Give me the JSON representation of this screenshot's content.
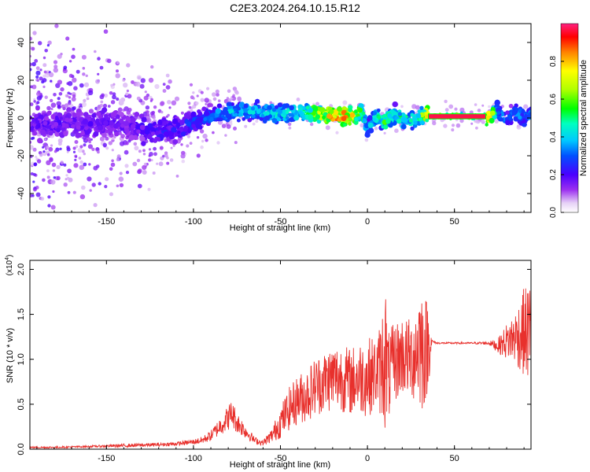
{
  "title": "C2E3.2024.264.10.15.R12",
  "chart_data": [
    {
      "type": "heatmap",
      "xlabel": "Height of straight line (km)",
      "ylabel": "Frequency (Hz)",
      "xlim": [
        -194,
        94
      ],
      "ylim": [
        -50,
        50
      ],
      "xticks": [
        -150,
        -100,
        -50,
        0,
        50
      ],
      "yticks": [
        -40,
        -20,
        0,
        20,
        40
      ],
      "colorbar": {
        "label": "Normalized spectral amplitude",
        "range": [
          0,
          1
        ],
        "ticks": [
          "0.0",
          "0.2",
          "0.4",
          "0.6",
          "0.8"
        ]
      },
      "ridge": {
        "x": [
          -190,
          -180,
          -170,
          -160,
          -150,
          -140,
          -130,
          -120,
          -110,
          -100,
          -90,
          -80,
          -70,
          -60,
          -50,
          -40,
          -30,
          -20,
          -10,
          -3,
          0,
          5,
          10,
          15,
          20,
          25,
          30,
          35,
          40,
          50,
          60,
          65,
          70,
          75,
          80,
          85,
          90,
          94
        ],
        "y": [
          -3,
          -4,
          -2,
          -4,
          -3,
          -4,
          -5,
          -7,
          -6,
          -2,
          1,
          3,
          4,
          3,
          2,
          3,
          3,
          1,
          1,
          3,
          -6,
          1,
          -2,
          2,
          0,
          -1,
          1,
          1,
          1,
          1,
          1,
          1,
          1,
          4,
          -2,
          3,
          0,
          2
        ],
        "amp": [
          0.2,
          0.22,
          0.2,
          0.22,
          0.2,
          0.2,
          0.22,
          0.25,
          0.25,
          0.3,
          0.35,
          0.45,
          0.45,
          0.45,
          0.5,
          0.55,
          0.7,
          0.9,
          0.95,
          0.6,
          0.4,
          0.5,
          0.6,
          0.5,
          0.6,
          0.5,
          0.55,
          0.95,
          1.0,
          1.0,
          1.0,
          1.0,
          0.9,
          0.4,
          0.35,
          0.4,
          0.35,
          0.4
        ]
      }
    },
    {
      "type": "line",
      "xlabel": "Height of straight line (km)",
      "ylabel": "SNR (10 * v/v)",
      "yscale_label": "(x10",
      "yscale_exp": "4",
      "yscale_suffix": ")",
      "xlim": [
        -194,
        94
      ],
      "ylim": [
        0,
        2.1
      ],
      "xticks": [
        -150,
        -100,
        -50,
        0,
        50
      ],
      "yticks": [
        "0.0",
        "0.5",
        "1.0",
        "1.5",
        "2.0"
      ],
      "series": [
        {
          "color": "#e8302c",
          "x": [
            -194,
            -180,
            -160,
            -140,
            -120,
            -110,
            -100,
            -95,
            -90,
            -85,
            -80,
            -78,
            -75,
            -70,
            -65,
            -60,
            -55,
            -50,
            -45,
            -40,
            -35,
            -30,
            -25,
            -20,
            -15,
            -10,
            -5,
            0,
            5,
            8,
            10,
            12,
            15,
            20,
            25,
            28,
            30,
            32,
            35,
            37,
            40,
            50,
            60,
            70,
            75,
            80,
            85,
            90,
            94
          ],
          "y": [
            0.02,
            0.02,
            0.03,
            0.04,
            0.05,
            0.06,
            0.08,
            0.1,
            0.15,
            0.25,
            0.35,
            0.4,
            0.3,
            0.2,
            0.1,
            0.07,
            0.15,
            0.3,
            0.45,
            0.55,
            0.6,
            0.7,
            0.75,
            0.8,
            0.8,
            0.75,
            0.8,
            0.8,
            0.85,
            0.9,
            1.1,
            0.8,
            0.95,
            1.05,
            1.0,
            1.1,
            1.2,
            1.1,
            1.15,
            1.2,
            1.18,
            1.18,
            1.18,
            1.18,
            1.15,
            1.2,
            1.25,
            1.3,
            1.3
          ],
          "jitter": [
            0.01,
            0.01,
            0.01,
            0.02,
            0.02,
            0.02,
            0.03,
            0.04,
            0.06,
            0.1,
            0.14,
            0.16,
            0.12,
            0.08,
            0.04,
            0.03,
            0.08,
            0.18,
            0.24,
            0.28,
            0.3,
            0.33,
            0.35,
            0.38,
            0.38,
            0.38,
            0.4,
            0.45,
            0.4,
            0.55,
            0.9,
            0.5,
            0.45,
            0.45,
            0.45,
            0.6,
            0.75,
            0.7,
            0.5,
            0.02,
            0.01,
            0.01,
            0.01,
            0.02,
            0.08,
            0.2,
            0.3,
            0.5,
            0.6
          ]
        }
      ]
    }
  ]
}
